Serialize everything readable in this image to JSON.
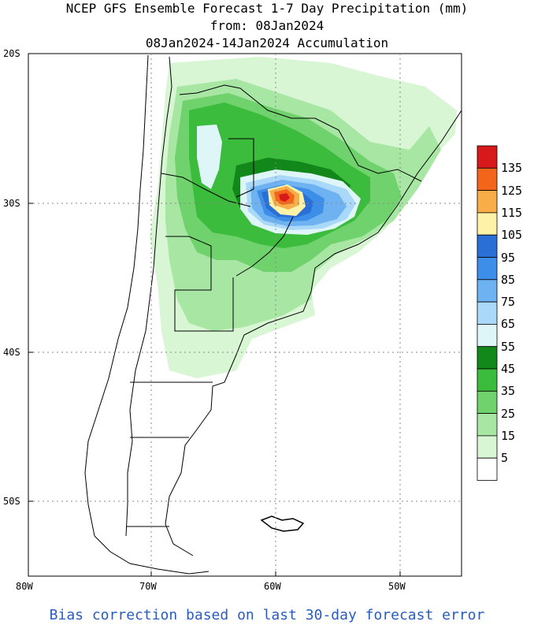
{
  "title": {
    "line1": "NCEP GFS Ensemble Forecast 1-7 Day Precipitation (mm)",
    "line2": "from: 08Jan2024",
    "line3": "08Jan2024-14Jan2024 Accumulation"
  },
  "axes": {
    "lat_labels": [
      "20S",
      "30S",
      "40S",
      "50S"
    ],
    "lon_labels": [
      "80W",
      "70W",
      "60W",
      "50W"
    ]
  },
  "colorbar": {
    "labels": [
      "135",
      "125",
      "115",
      "105",
      "95",
      "85",
      "75",
      "65",
      "55",
      "45",
      "35",
      "25",
      "15",
      "5"
    ],
    "colors": [
      "#d7191c",
      "#f2651a",
      "#f8ad48",
      "#fdf2a8",
      "#2a6fd6",
      "#3d8ee8",
      "#6fb2f2",
      "#a9d8f8",
      "#dff6f8",
      "#12881a",
      "#3cbc3c",
      "#6fd26c",
      "#a8e6a4",
      "#d8f6d4",
      "#ffffff"
    ]
  },
  "footer": "Bias correction based on last 30-day forecast error"
}
